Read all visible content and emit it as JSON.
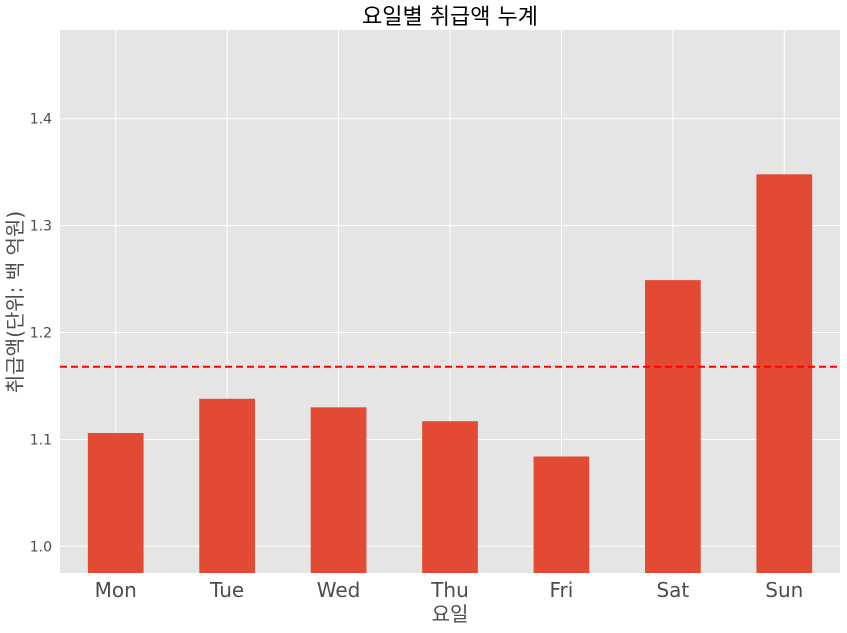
{
  "chart_data": {
    "type": "bar",
    "title": "요일별 취급액 누계",
    "xlabel": "요일",
    "ylabel": "취급액(단위: 백 억원)",
    "categories": [
      "Mon",
      "Tue",
      "Wed",
      "Thu",
      "Fri",
      "Sat",
      "Sun"
    ],
    "values": [
      1.106,
      1.138,
      1.13,
      1.117,
      1.084,
      1.249,
      1.348
    ],
    "ylim": [
      0.975,
      1.483
    ],
    "yticks": [
      "1.0",
      "1.1",
      "1.2",
      "1.3",
      "1.4"
    ],
    "ytick_values": [
      1.0,
      1.1,
      1.2,
      1.3,
      1.4
    ],
    "reference_line": {
      "value": 1.168,
      "style": "dashed",
      "color": "#ff0000"
    },
    "grid": true,
    "colors": {
      "bar": "#e24a33",
      "background": "#e5e5e5",
      "grid": "#ffffff"
    }
  }
}
